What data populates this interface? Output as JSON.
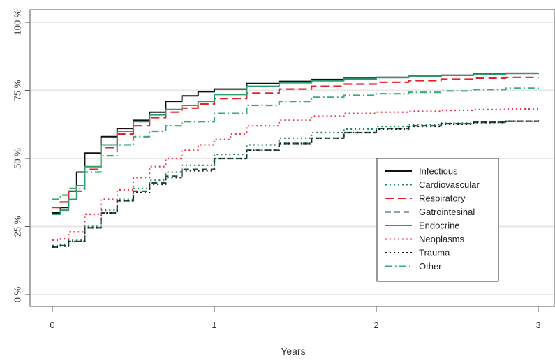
{
  "chart_data": {
    "type": "line",
    "xlabel": "Years",
    "ylabel": "",
    "xlim": [
      0,
      3
    ],
    "ylim": [
      0,
      100
    ],
    "x_ticks": [
      0,
      1,
      2,
      3
    ],
    "y_ticks": [
      0,
      25,
      50,
      75,
      100
    ],
    "y_tick_labels": [
      "0 %",
      "25 %",
      "50 %",
      "75 %",
      "100 %"
    ],
    "grid": "horizontal",
    "legend_position": "lower-right",
    "series": [
      {
        "name": "Infectious",
        "color": "#111111",
        "style": "solid",
        "x": [
          0,
          0.05,
          0.1,
          0.15,
          0.2,
          0.3,
          0.4,
          0.5,
          0.6,
          0.7,
          0.8,
          0.9,
          1.0,
          1.2,
          1.4,
          1.6,
          1.8,
          2.0,
          2.2,
          2.4,
          2.6,
          2.8,
          3.0
        ],
        "values": [
          30,
          32,
          38,
          45,
          52,
          58,
          61,
          64,
          67,
          71,
          73,
          74.5,
          75.5,
          77.5,
          78.3,
          79,
          79.4,
          79.8,
          80.2,
          80.6,
          81,
          81.3,
          81.5
        ]
      },
      {
        "name": "Cardiovascular",
        "color": "#1e8b5a",
        "style": "dotted",
        "x": [
          0,
          0.05,
          0.1,
          0.2,
          0.3,
          0.4,
          0.5,
          0.6,
          0.7,
          0.8,
          1.0,
          1.2,
          1.4,
          1.6,
          1.8,
          2.0,
          2.2,
          2.4,
          2.6,
          2.8,
          3.0
        ],
        "values": [
          18,
          18.5,
          20,
          25,
          31,
          35,
          39,
          42,
          45,
          47.5,
          51.5,
          55,
          57.5,
          59.5,
          60.8,
          61.8,
          62.5,
          63,
          63.4,
          63.7,
          64
        ]
      },
      {
        "name": "Respiratory",
        "color": "#e8202a",
        "style": "longdash",
        "x": [
          0,
          0.05,
          0.1,
          0.2,
          0.3,
          0.4,
          0.5,
          0.6,
          0.7,
          0.8,
          0.9,
          1.0,
          1.2,
          1.4,
          1.6,
          1.8,
          2.0,
          2.2,
          2.4,
          2.6,
          2.8,
          3.0
        ],
        "values": [
          32,
          34,
          38,
          46,
          54,
          59,
          62,
          65,
          67,
          68.5,
          70,
          72,
          74,
          75.5,
          76.5,
          77.3,
          78,
          78.6,
          79.1,
          79.5,
          79.8,
          80
        ]
      },
      {
        "name": "Gatrointesinal",
        "color": "#1f4e3a",
        "style": "dashed",
        "x": [
          0,
          0.05,
          0.1,
          0.2,
          0.3,
          0.4,
          0.5,
          0.6,
          0.7,
          0.8,
          1.0,
          1.2,
          1.4,
          1.6,
          1.8,
          2.0,
          2.2,
          2.4,
          2.6,
          2.8,
          3.0
        ],
        "values": [
          17.5,
          18,
          19.5,
          24.5,
          30,
          34.5,
          38,
          41,
          43.5,
          46,
          50,
          53,
          55.5,
          57.5,
          59.5,
          61,
          62,
          62.8,
          63.3,
          63.7,
          64
        ]
      },
      {
        "name": "Endocrine",
        "color": "#2a9d6b",
        "style": "solid",
        "x": [
          0,
          0.05,
          0.1,
          0.15,
          0.2,
          0.3,
          0.4,
          0.5,
          0.6,
          0.7,
          0.8,
          0.9,
          1.0,
          1.2,
          1.4,
          1.6,
          1.8,
          2.0,
          2.2,
          2.4,
          2.6,
          2.8,
          3.0
        ],
        "values": [
          29.5,
          31,
          35,
          40,
          47,
          55,
          60,
          63.5,
          66,
          68,
          69.5,
          71,
          73.5,
          76.5,
          77.8,
          78.5,
          79.2,
          79.7,
          80.1,
          80.5,
          80.9,
          81.2,
          81.5
        ]
      },
      {
        "name": "Neoplasms",
        "color": "#ee3344",
        "style": "dotted",
        "x": [
          0,
          0.05,
          0.1,
          0.2,
          0.3,
          0.4,
          0.5,
          0.6,
          0.7,
          0.8,
          0.9,
          1.0,
          1.1,
          1.2,
          1.4,
          1.6,
          1.8,
          2.0,
          2.2,
          2.4,
          2.6,
          2.8,
          3.0
        ],
        "values": [
          20,
          20.5,
          23,
          29.5,
          35,
          38.5,
          43,
          47,
          50,
          53,
          55,
          57,
          59,
          62,
          64,
          65.5,
          66.5,
          67,
          67.3,
          67.7,
          68,
          68.2,
          68.5
        ]
      },
      {
        "name": "Trauma",
        "color": "#1a1a2e",
        "style": "dotted",
        "x": [
          0,
          0.05,
          0.1,
          0.2,
          0.3,
          0.4,
          0.5,
          0.6,
          0.7,
          0.8,
          1.0,
          1.2,
          1.4,
          1.6,
          1.8,
          2.0,
          2.2,
          2.4,
          2.6,
          2.8,
          3.0
        ],
        "values": [
          17.5,
          17.8,
          19.5,
          24.5,
          30,
          34.5,
          37.5,
          40.5,
          43,
          45.5,
          50,
          53,
          55.5,
          57.5,
          59.5,
          60.8,
          61.8,
          62.6,
          63.2,
          63.7,
          64
        ]
      },
      {
        "name": "Other",
        "color": "#3aaa7a",
        "style": "dashdot",
        "x": [
          0,
          0.05,
          0.1,
          0.2,
          0.3,
          0.4,
          0.5,
          0.6,
          0.7,
          0.8,
          1.0,
          1.2,
          1.4,
          1.6,
          1.8,
          2.0,
          2.2,
          2.4,
          2.6,
          2.8,
          3.0
        ],
        "values": [
          35,
          36.5,
          39,
          45,
          51,
          55,
          58,
          60,
          62,
          63.5,
          66.5,
          69.5,
          71,
          72.5,
          73.2,
          73.8,
          74.3,
          74.8,
          75.3,
          75.8,
          76.3
        ]
      }
    ]
  }
}
